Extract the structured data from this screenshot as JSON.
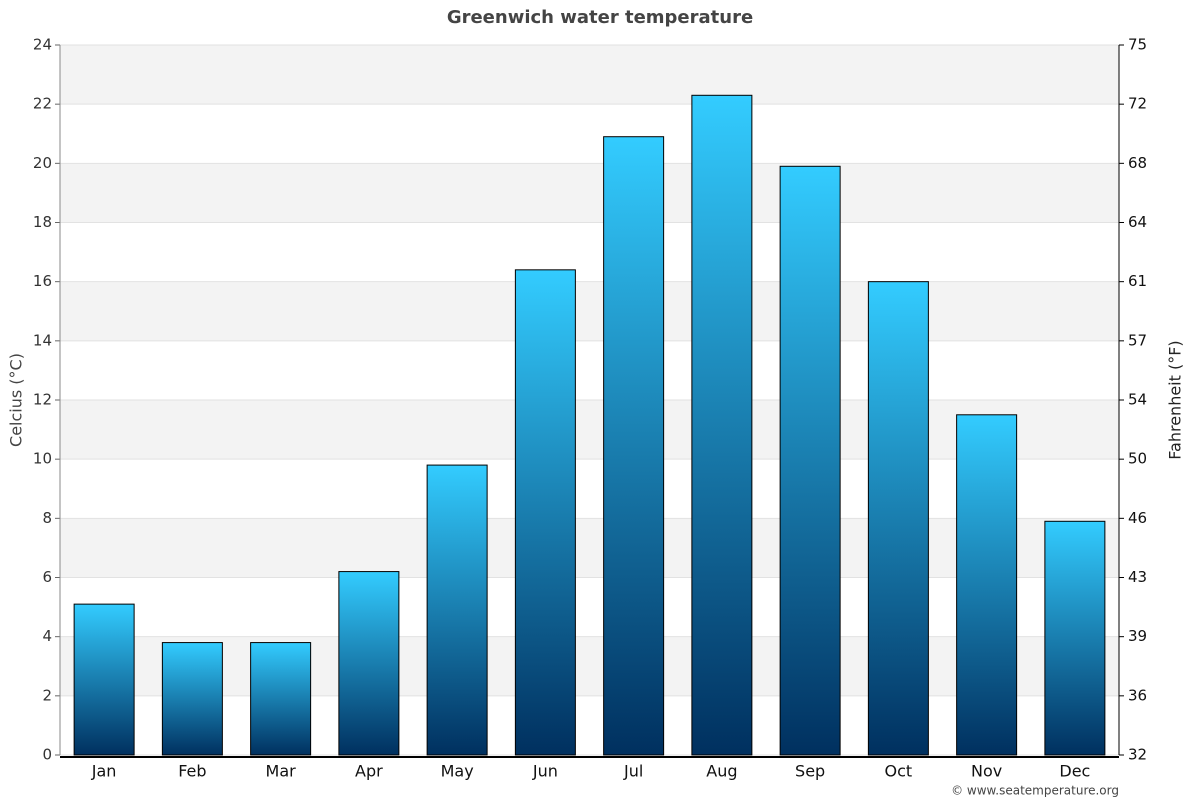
{
  "chart_data": {
    "type": "bar",
    "title": "Greenwich water temperature",
    "categories": [
      "Jan",
      "Feb",
      "Mar",
      "Apr",
      "May",
      "Jun",
      "Jul",
      "Aug",
      "Sep",
      "Oct",
      "Nov",
      "Dec"
    ],
    "values": [
      5.1,
      3.8,
      3.8,
      6.2,
      9.8,
      16.4,
      20.9,
      22.3,
      19.9,
      16.0,
      11.5,
      7.9
    ],
    "gradient": [
      "#33ccff",
      "#00305f"
    ],
    "ylabel": "Celcius (°C)",
    "y2label": "Fahrenheit (°F)",
    "ylim": [
      0,
      24
    ],
    "yticks": [
      0,
      2,
      4,
      6,
      8,
      10,
      12,
      14,
      16,
      18,
      20,
      22,
      24
    ],
    "y2lim": [
      32,
      75.2
    ],
    "y2ticks": [
      32,
      {
        "value": 35.6,
        "label": "36"
      },
      {
        "value": 39.2,
        "label": "39"
      },
      {
        "value": 42.8,
        "label": "43"
      },
      {
        "value": 46.4,
        "label": "46"
      },
      50,
      {
        "value": 53.6,
        "label": "54"
      },
      {
        "value": 57.2,
        "label": "57"
      },
      {
        "value": 60.8,
        "label": "61"
      },
      {
        "value": 64.4,
        "label": "64"
      },
      68,
      {
        "value": 71.6,
        "label": "72"
      },
      {
        "value": 75.2,
        "label": "75"
      }
    ],
    "grid": true,
    "bands": true,
    "credit": "© www.seatemperature.org"
  }
}
